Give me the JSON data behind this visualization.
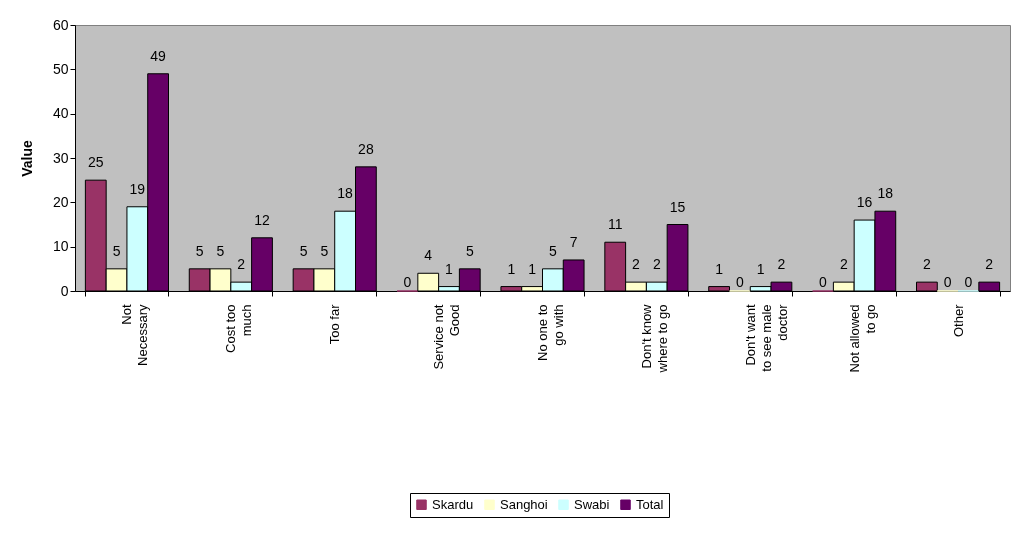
{
  "chart_data": {
    "type": "bar",
    "ylabel": "Value",
    "categories": [
      "Not Necessary",
      "Cost too much",
      "Too far",
      "Service not Good",
      "No one to go with",
      "Don't know where to go",
      "Don't want to see male doctor",
      "Not allowed to go",
      "Other"
    ],
    "series": [
      {
        "name": "Skardu",
        "color": "#993366",
        "values": [
          25,
          5,
          5,
          0,
          1,
          11,
          1,
          0,
          2
        ]
      },
      {
        "name": "Sanghoi",
        "color": "#ffffcc",
        "values": [
          5,
          5,
          5,
          4,
          1,
          2,
          0,
          2,
          0
        ]
      },
      {
        "name": "Swabi",
        "color": "#ccffff",
        "values": [
          19,
          2,
          18,
          1,
          5,
          2,
          1,
          16,
          0
        ]
      },
      {
        "name": "Total",
        "color": "#660066",
        "values": [
          49,
          12,
          28,
          5,
          7,
          15,
          2,
          18,
          2
        ]
      }
    ],
    "ylim": [
      0,
      60
    ],
    "yticks": [
      0,
      10,
      20,
      30,
      40,
      50,
      60
    ],
    "data_labels": true,
    "grid": false,
    "legend": "bottom"
  }
}
